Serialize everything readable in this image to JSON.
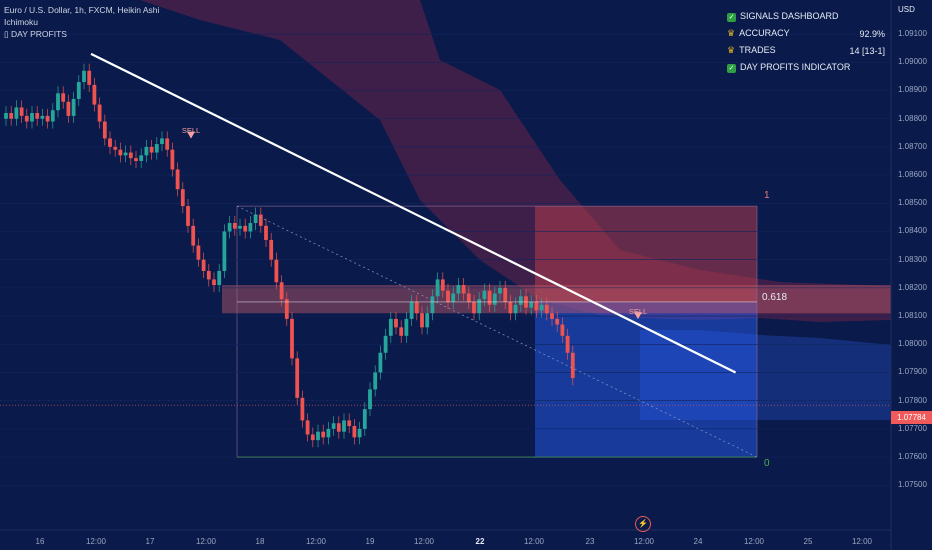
{
  "header": {
    "title": "Euro / U.S. Dollar, 1h, FXCM, Heikin Ashi",
    "indicator_1": "Ichimoku",
    "indicator_2": "DAY PROFITS"
  },
  "dashboard": {
    "title": "SIGNALS DASHBOARD",
    "accuracy_label": "ACCURACY",
    "accuracy_value": "92.9%",
    "trades_label": "TRADES",
    "trades_value": "14 [13-1]",
    "indicator_label": "DAY PROFITS INDICATOR"
  },
  "price_axis": {
    "currency": "USD",
    "labels": [
      "1.09100",
      "1.09000",
      "1.08900",
      "1.08800",
      "1.08700",
      "1.08600",
      "1.08500",
      "1.08400",
      "1.08300",
      "1.08200",
      "1.08100",
      "1.08000",
      "1.07900",
      "1.07800",
      "1.07700",
      "1.07600",
      "1.07500"
    ],
    "current_price": "1.07784"
  },
  "time_axis": {
    "labels": [
      "16",
      "12:00",
      "17",
      "12:00",
      "18",
      "12:00",
      "19",
      "12:00",
      "22",
      "12:00",
      "23",
      "12:00",
      "24",
      "12:00",
      "25",
      "12:00"
    ]
  },
  "signals": {
    "sell_1": "SELL",
    "sell_2": "SELL"
  },
  "fib": {
    "level_top": "1",
    "level_mid": "0.618",
    "level_bottom": "0"
  },
  "colors": {
    "background": "#0a1a4a",
    "bull": "#26a69a",
    "bear": "#ef5350",
    "cloud": "#7a2a4a",
    "trendline": "#ffffff",
    "fib_box": "#b03a4a",
    "target_box": "#2962ff"
  },
  "chart_data": {
    "type": "candlestick",
    "title": "Euro / U.S. Dollar, 1h, FXCM, Heikin Ashi",
    "ylim": [
      1.0743,
      1.0915
    ],
    "current_price": 1.07784,
    "fib_levels": {
      "1": 1.0849,
      "0.618": 1.0815,
      "0": 1.076
    },
    "trendline": {
      "from": [
        0,
        1.0903
      ],
      "to": [
        123,
        1.079
      ]
    },
    "sell_signals": [
      {
        "index": 31,
        "price": 1.0874
      },
      {
        "index": 104,
        "price": 1.081
      }
    ],
    "candles": [
      {
        "o": 1.088,
        "c": 1.0882
      },
      {
        "o": 1.0882,
        "c": 1.088
      },
      {
        "o": 1.088,
        "c": 1.0884
      },
      {
        "o": 1.0884,
        "c": 1.0881
      },
      {
        "o": 1.0881,
        "c": 1.0879
      },
      {
        "o": 1.0879,
        "c": 1.0882
      },
      {
        "o": 1.0882,
        "c": 1.088
      },
      {
        "o": 1.088,
        "c": 1.0881
      },
      {
        "o": 1.0881,
        "c": 1.0879
      },
      {
        "o": 1.0879,
        "c": 1.0883
      },
      {
        "o": 1.0883,
        "c": 1.0889
      },
      {
        "o": 1.0889,
        "c": 1.0886
      },
      {
        "o": 1.0886,
        "c": 1.0881
      },
      {
        "o": 1.0881,
        "c": 1.0887
      },
      {
        "o": 1.0887,
        "c": 1.0893
      },
      {
        "o": 1.0893,
        "c": 1.0897
      },
      {
        "o": 1.0897,
        "c": 1.0892
      },
      {
        "o": 1.0892,
        "c": 1.0885
      },
      {
        "o": 1.0885,
        "c": 1.0879
      },
      {
        "o": 1.0879,
        "c": 1.0873
      },
      {
        "o": 1.0873,
        "c": 1.087
      },
      {
        "o": 1.087,
        "c": 1.0869
      },
      {
        "o": 1.0869,
        "c": 1.0867
      },
      {
        "o": 1.0867,
        "c": 1.0868
      },
      {
        "o": 1.0868,
        "c": 1.0866
      },
      {
        "o": 1.0866,
        "c": 1.0865
      },
      {
        "o": 1.0865,
        "c": 1.0867
      },
      {
        "o": 1.0867,
        "c": 1.087
      },
      {
        "o": 1.087,
        "c": 1.0868
      },
      {
        "o": 1.0868,
        "c": 1.0871
      },
      {
        "o": 1.0871,
        "c": 1.0873
      },
      {
        "o": 1.0873,
        "c": 1.0869
      },
      {
        "o": 1.0869,
        "c": 1.0862
      },
      {
        "o": 1.0862,
        "c": 1.0855
      },
      {
        "o": 1.0855,
        "c": 1.0849
      },
      {
        "o": 1.0849,
        "c": 1.0842
      },
      {
        "o": 1.0842,
        "c": 1.0835
      },
      {
        "o": 1.0835,
        "c": 1.083
      },
      {
        "o": 1.083,
        "c": 1.0826
      },
      {
        "o": 1.0826,
        "c": 1.0823
      },
      {
        "o": 1.0823,
        "c": 1.0821
      },
      {
        "o": 1.0821,
        "c": 1.0826
      },
      {
        "o": 1.0826,
        "c": 1.084
      },
      {
        "o": 1.084,
        "c": 1.0843
      },
      {
        "o": 1.0843,
        "c": 1.0841
      },
      {
        "o": 1.0841,
        "c": 1.0842
      },
      {
        "o": 1.0842,
        "c": 1.084
      },
      {
        "o": 1.084,
        "c": 1.0843
      },
      {
        "o": 1.0843,
        "c": 1.0846
      },
      {
        "o": 1.0846,
        "c": 1.0842
      },
      {
        "o": 1.0842,
        "c": 1.0837
      },
      {
        "o": 1.0837,
        "c": 1.083
      },
      {
        "o": 1.083,
        "c": 1.0822
      },
      {
        "o": 1.0822,
        "c": 1.0816
      },
      {
        "o": 1.0816,
        "c": 1.0809
      },
      {
        "o": 1.0809,
        "c": 1.0795
      },
      {
        "o": 1.0795,
        "c": 1.0781
      },
      {
        "o": 1.0781,
        "c": 1.0773
      },
      {
        "o": 1.0773,
        "c": 1.0768
      },
      {
        "o": 1.0768,
        "c": 1.0766
      },
      {
        "o": 1.0766,
        "c": 1.0769
      },
      {
        "o": 1.0769,
        "c": 1.0767
      },
      {
        "o": 1.0767,
        "c": 1.077
      },
      {
        "o": 1.077,
        "c": 1.0772
      },
      {
        "o": 1.0772,
        "c": 1.0769
      },
      {
        "o": 1.0769,
        "c": 1.0773
      },
      {
        "o": 1.0773,
        "c": 1.0771
      },
      {
        "o": 1.0771,
        "c": 1.0767
      },
      {
        "o": 1.0767,
        "c": 1.077
      },
      {
        "o": 1.077,
        "c": 1.0777
      },
      {
        "o": 1.0777,
        "c": 1.0784
      },
      {
        "o": 1.0784,
        "c": 1.079
      },
      {
        "o": 1.079,
        "c": 1.0797
      },
      {
        "o": 1.0797,
        "c": 1.0803
      },
      {
        "o": 1.0803,
        "c": 1.0809
      },
      {
        "o": 1.0809,
        "c": 1.0806
      },
      {
        "o": 1.0806,
        "c": 1.0803
      },
      {
        "o": 1.0803,
        "c": 1.0809
      },
      {
        "o": 1.0809,
        "c": 1.0815
      },
      {
        "o": 1.0815,
        "c": 1.0811
      },
      {
        "o": 1.0811,
        "c": 1.0806
      },
      {
        "o": 1.0806,
        "c": 1.0811
      },
      {
        "o": 1.0811,
        "c": 1.0817
      },
      {
        "o": 1.0817,
        "c": 1.0823
      },
      {
        "o": 1.0823,
        "c": 1.0819
      },
      {
        "o": 1.0819,
        "c": 1.0815
      },
      {
        "o": 1.0815,
        "c": 1.0818
      },
      {
        "o": 1.0818,
        "c": 1.0821
      },
      {
        "o": 1.0821,
        "c": 1.0818
      },
      {
        "o": 1.0818,
        "c": 1.0815
      },
      {
        "o": 1.0815,
        "c": 1.0811
      },
      {
        "o": 1.0811,
        "c": 1.0816
      },
      {
        "o": 1.0816,
        "c": 1.0819
      },
      {
        "o": 1.0819,
        "c": 1.0814
      },
      {
        "o": 1.0814,
        "c": 1.0818
      },
      {
        "o": 1.0818,
        "c": 1.082
      },
      {
        "o": 1.082,
        "c": 1.0815
      },
      {
        "o": 1.0815,
        "c": 1.0811
      },
      {
        "o": 1.0811,
        "c": 1.0814
      },
      {
        "o": 1.0814,
        "c": 1.0817
      },
      {
        "o": 1.0817,
        "c": 1.0813
      },
      {
        "o": 1.0813,
        "c": 1.0815
      },
      {
        "o": 1.0815,
        "c": 1.0812
      },
      {
        "o": 1.0812,
        "c": 1.0814
      },
      {
        "o": 1.0814,
        "c": 1.0811
      },
      {
        "o": 1.0811,
        "c": 1.0809
      },
      {
        "o": 1.0809,
        "c": 1.0807
      },
      {
        "o": 1.0807,
        "c": 1.0803
      },
      {
        "o": 1.0803,
        "c": 1.0797
      },
      {
        "o": 1.0797,
        "c": 1.0788
      }
    ]
  }
}
